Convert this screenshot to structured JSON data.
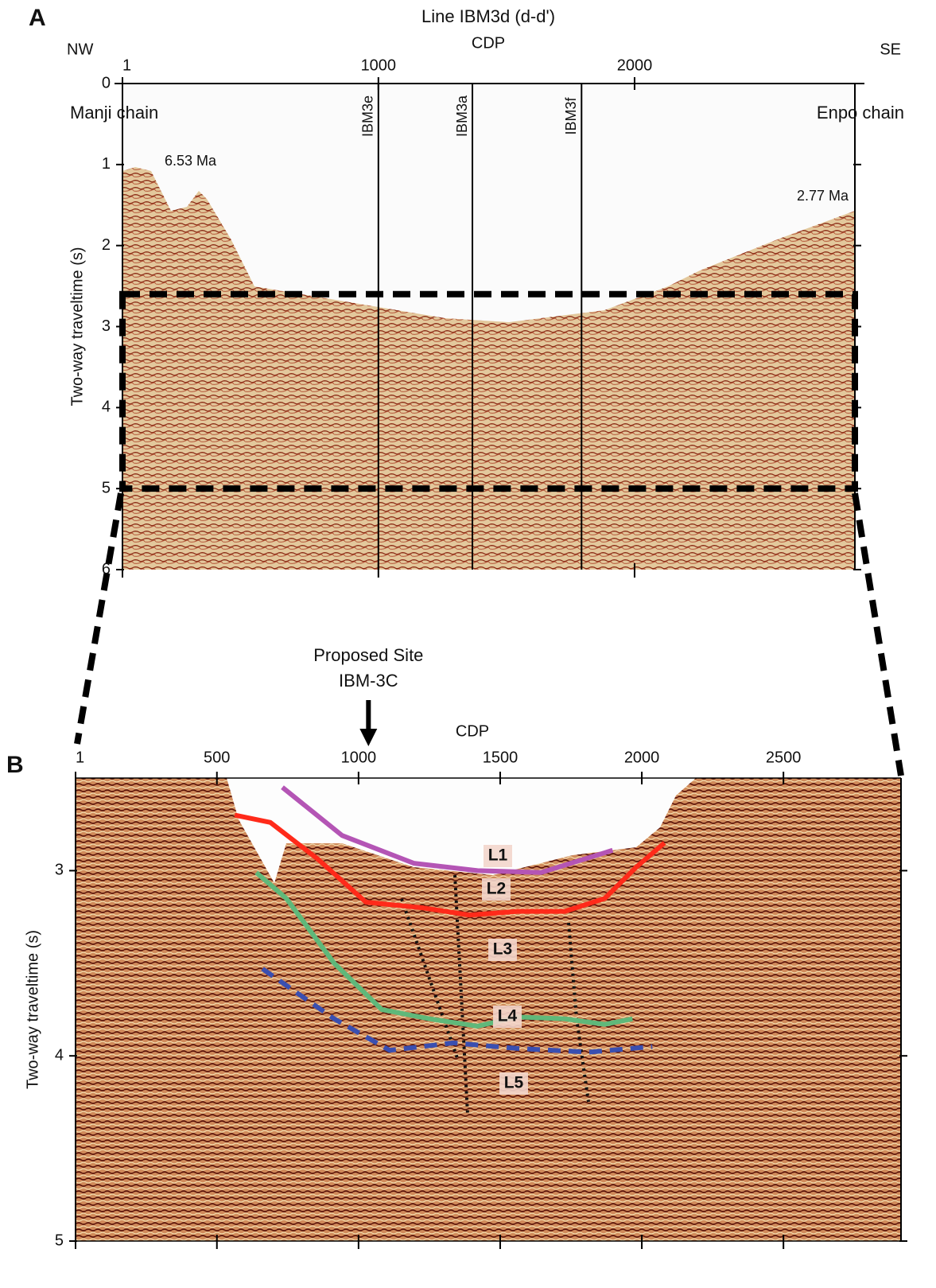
{
  "chart_data": [
    {
      "type": "seismic",
      "panel": "A",
      "title": "Line IBM3d (d-d')",
      "xlabel": "CDP",
      "ylabel": "Two-way traveltime (s)",
      "left_label": "NW",
      "right_label": "SE",
      "left_feature": "Manji chain",
      "right_feature": "Enpo chain",
      "left_age": "6.53 Ma",
      "right_age": "2.77 Ma",
      "xlim": [
        1,
        2860
      ],
      "xticks": [
        1,
        1000,
        2000
      ],
      "ylim": [
        0,
        6
      ],
      "yticks": [
        0,
        1,
        2,
        3,
        4,
        5,
        6
      ],
      "markers": [
        {
          "label": "IBM3e",
          "x": 1000
        },
        {
          "label": "IBM3a",
          "x": 1367
        },
        {
          "label": "IBM3f",
          "x": 1793
        }
      ],
      "zoom_box": [
        2.6,
        5.0
      ]
    },
    {
      "type": "seismic",
      "panel": "B",
      "xlabel": "CDP",
      "ylabel": "Two-way traveltime (s)",
      "xlim": [
        1,
        2915
      ],
      "xticks": [
        1,
        500,
        1000,
        1500,
        2000,
        2500
      ],
      "ylim": [
        2.5,
        5
      ],
      "yticks": [
        3,
        4,
        5
      ],
      "site": {
        "label": [
          "Proposed Site",
          "IBM-3C"
        ],
        "x": 1035
      },
      "layers": [
        "L1",
        "L2",
        "L3",
        "L4",
        "L5"
      ],
      "series": [
        {
          "color": "#b455b5",
          "style": "solid",
          "x": [
            731,
            942,
            1195,
            1420,
            1644,
            1897
          ],
          "values": [
            2.55,
            2.81,
            2.96,
            3.0,
            3.01,
            2.89
          ]
        },
        {
          "color": "#ff2a1a",
          "style": "solid",
          "x": [
            563,
            689,
            858,
            1026,
            1223,
            1392,
            1560,
            1728,
            1869,
            1981,
            2080
          ],
          "values": [
            2.7,
            2.74,
            2.94,
            3.17,
            3.2,
            3.24,
            3.22,
            3.22,
            3.15,
            2.98,
            2.85
          ]
        },
        {
          "color": "#5fb87a",
          "style": "solid",
          "x": [
            639,
            745,
            914,
            1082,
            1251,
            1420,
            1560,
            1728,
            1869,
            1967
          ],
          "values": [
            3.01,
            3.15,
            3.5,
            3.75,
            3.8,
            3.84,
            3.79,
            3.8,
            3.83,
            3.8
          ]
        },
        {
          "color": "#3a4fb0",
          "style": "dashed",
          "x": [
            661,
            914,
            1110,
            1335,
            1560,
            1813,
            2037
          ],
          "values": [
            3.53,
            3.8,
            3.97,
            3.93,
            3.96,
            3.98,
            3.95
          ]
        }
      ]
    }
  ]
}
